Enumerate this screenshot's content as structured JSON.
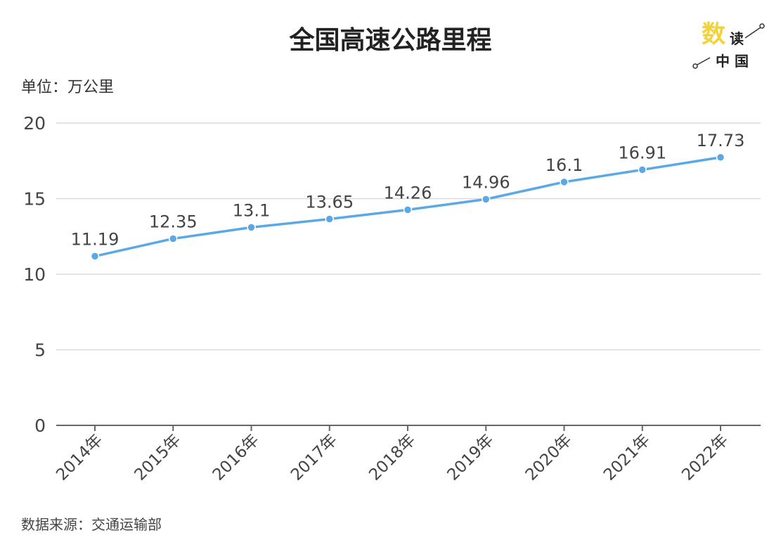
{
  "logo": {
    "text": "数读中国",
    "accent": "#f2d23a"
  },
  "chart_data": {
    "type": "line",
    "title": "全国高速公路里程",
    "unit_label": "单位：万公里",
    "source": "数据来源：交通运输部",
    "categories": [
      "2014年",
      "2015年",
      "2016年",
      "2017年",
      "2018年",
      "2019年",
      "2020年",
      "2021年",
      "2022年"
    ],
    "values": [
      11.19,
      12.35,
      13.1,
      13.65,
      14.26,
      14.96,
      16.1,
      16.91,
      17.73
    ],
    "data_labels": [
      "11.19",
      "12.35",
      "13.1",
      "13.65",
      "14.26",
      "14.96",
      "16.1",
      "16.91",
      "17.73"
    ],
    "ylim": [
      0,
      20
    ],
    "yticks": [
      "0",
      "5",
      "10",
      "15",
      "20"
    ],
    "ytick_values": [
      0,
      5,
      10,
      15,
      20
    ],
    "grid": true,
    "line_color": "#5aa9e6"
  }
}
